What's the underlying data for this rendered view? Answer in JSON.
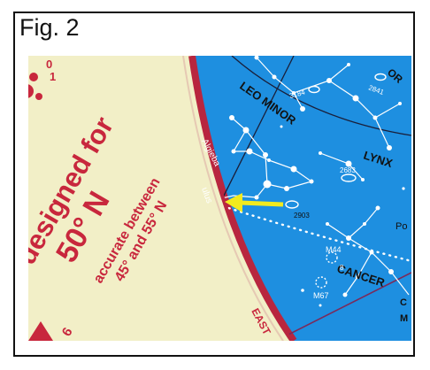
{
  "figure": {
    "label": "Fig. 2"
  },
  "colors": {
    "cream": "#f2efc7",
    "sky": "#1e8fe0",
    "rim": "#b8263f",
    "ink": "#c8273d",
    "arrow": "#f2ea1e",
    "lines": "#ffffff",
    "dark_lines": "#1a1f3a"
  },
  "planisphere": {
    "designed_line1": "designed for",
    "designed_line2": "50° N",
    "accurate_line1": "accurate between",
    "accurate_line2": "45° and 55° N",
    "east_label": "EAST",
    "top_digits": [
      "0",
      "1"
    ],
    "bottom_digit": "6"
  },
  "sky": {
    "constellations": [
      "LEO MINOR",
      "LYNX",
      "CANCER"
    ],
    "partial_labels": [
      "Algieba",
      "ulus",
      "OR",
      "Po",
      "C",
      "M"
    ],
    "catalog_numbers": [
      "3184",
      "2841",
      "2683",
      "2903",
      "M44",
      "M67",
      "8"
    ]
  },
  "arrow_icon": "yellow-arrow-icon"
}
